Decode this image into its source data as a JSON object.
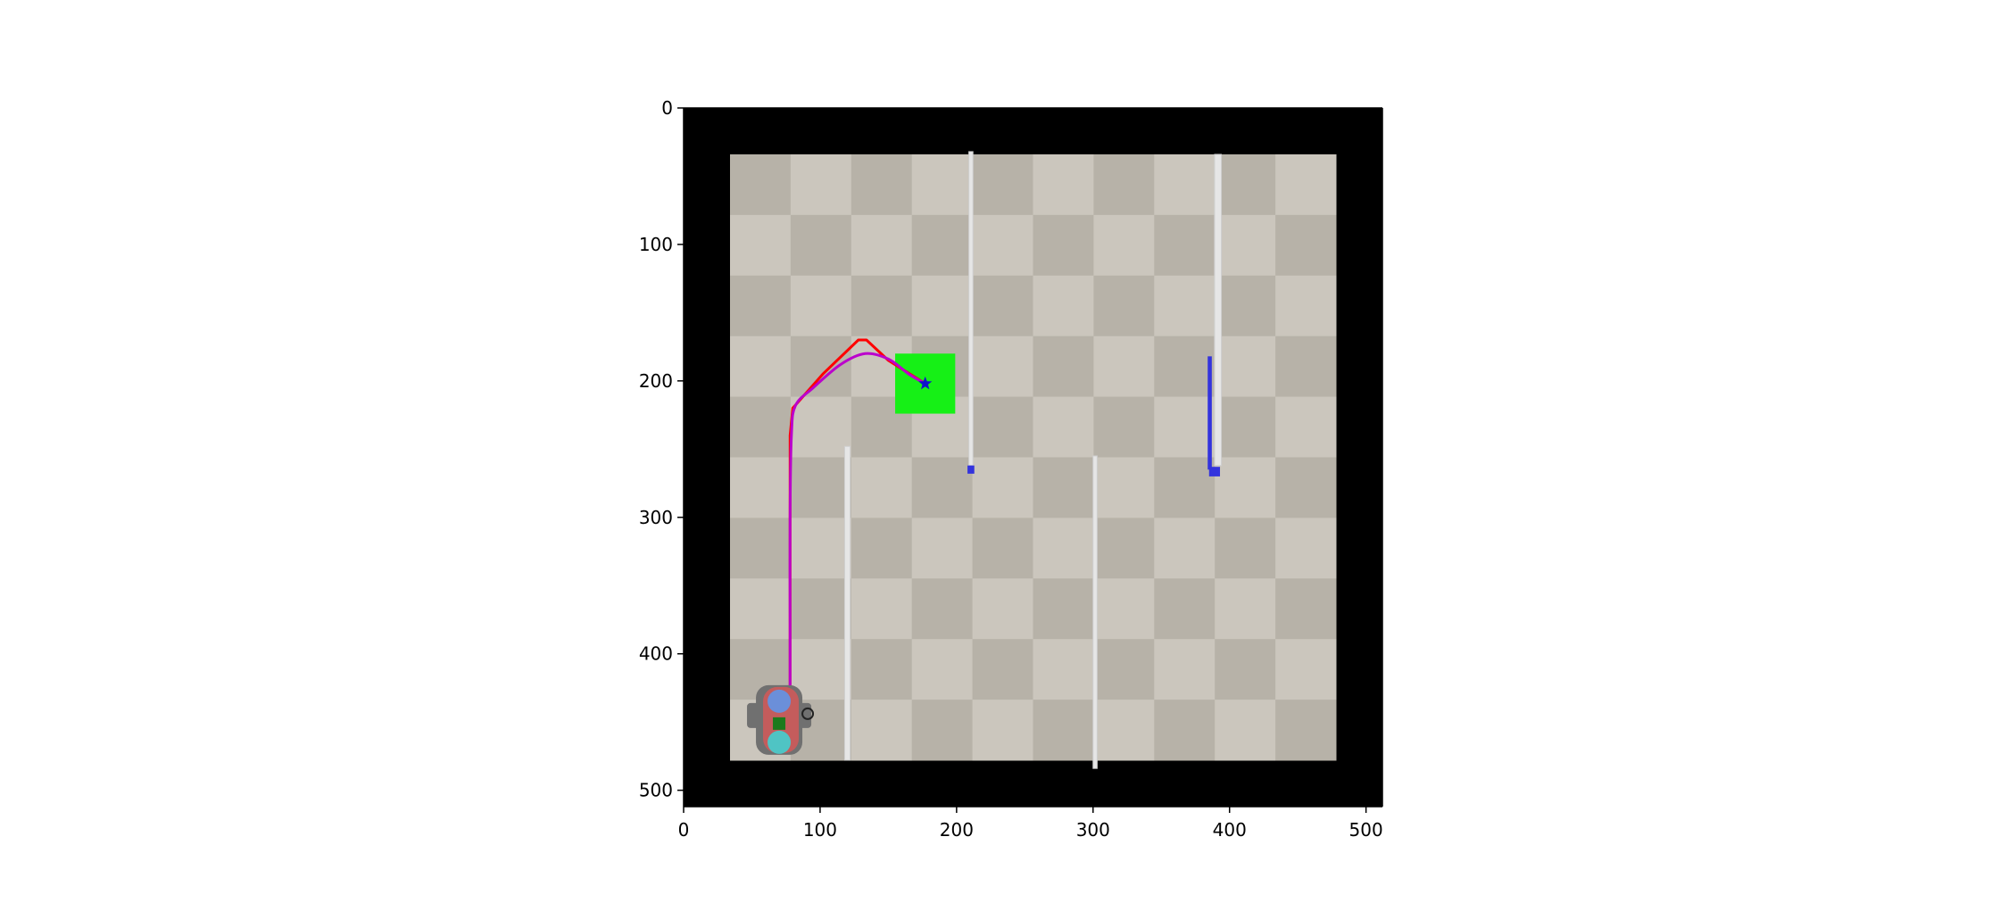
{
  "chart_data": {
    "type": "scatter",
    "title": "",
    "xlabel": "",
    "ylabel": "",
    "xlim": [
      0,
      512
    ],
    "ylim": [
      512,
      0
    ],
    "y_axis_inverted": true,
    "grid": false,
    "legend": "none",
    "xticks": [
      0,
      100,
      200,
      300,
      400,
      500
    ],
    "yticks": [
      0,
      100,
      200,
      300,
      400,
      500
    ],
    "xtick_labels": [
      "0",
      "100",
      "200",
      "300",
      "400",
      "500"
    ],
    "ytick_labels": [
      "0",
      "100",
      "200",
      "300",
      "400",
      "500"
    ],
    "environment": {
      "outer_border": {
        "x": [
          0,
          512
        ],
        "y": [
          0,
          512
        ],
        "color": "#000000"
      },
      "floor": {
        "x": [
          34,
          478
        ],
        "y": [
          34,
          478
        ],
        "tiles": 10,
        "light": "#cbc6bd",
        "dark": "#b7b2a8"
      },
      "walls": [
        {
          "x": [
            209,
            212
          ],
          "y": [
            32,
            262
          ],
          "color": "#e6e6e6"
        },
        {
          "x": [
            389,
            394
          ],
          "y": [
            34,
            262
          ],
          "color": "#e6e6e6"
        },
        {
          "x": [
            118,
            122
          ],
          "y": [
            248,
            478
          ],
          "color": "#e6e6e6"
        },
        {
          "x": [
            300,
            303
          ],
          "y": [
            255,
            484
          ],
          "color": "#e6e6e6"
        }
      ],
      "blue_markers": [
        {
          "x": [
            208,
            213
          ],
          "y": [
            262,
            268
          ],
          "color": "#3333dd"
        },
        {
          "x": [
            385,
            393
          ],
          "y": [
            263,
            270
          ],
          "color": "#3333dd"
        },
        {
          "x": [
            384,
            387
          ],
          "y": [
            182,
            265
          ],
          "color": "#3333dd"
        }
      ],
      "goal_region": {
        "x": [
          155,
          199
        ],
        "y": [
          180,
          224
        ],
        "color": "#16f016"
      },
      "goal_point": {
        "x": 177,
        "y": 202,
        "marker": "star",
        "color": "#1111cc"
      },
      "robot": {
        "x": 70,
        "y": 440,
        "body_color": "#707070",
        "accent_color": "#e05555",
        "front_color": "#6b8fd9",
        "rear_color": "#4fc4c4",
        "center_color": "#1c7a1c"
      }
    },
    "series": [
      {
        "color": "#ff0000",
        "x": [
          78,
          78,
          78,
          78,
          80,
          102,
          128,
          134,
          150,
          177
        ],
        "y": [
          440,
          400,
          300,
          240,
          220,
          195,
          170,
          170,
          185,
          202
        ]
      },
      {
        "color": "#bb00cc",
        "x": [
          78,
          78,
          78,
          79,
          82,
          95,
          115,
          133,
          150,
          165,
          177
        ],
        "y": [
          440,
          380,
          300,
          240,
          218,
          205,
          188,
          180,
          184,
          195,
          202
        ]
      }
    ]
  }
}
